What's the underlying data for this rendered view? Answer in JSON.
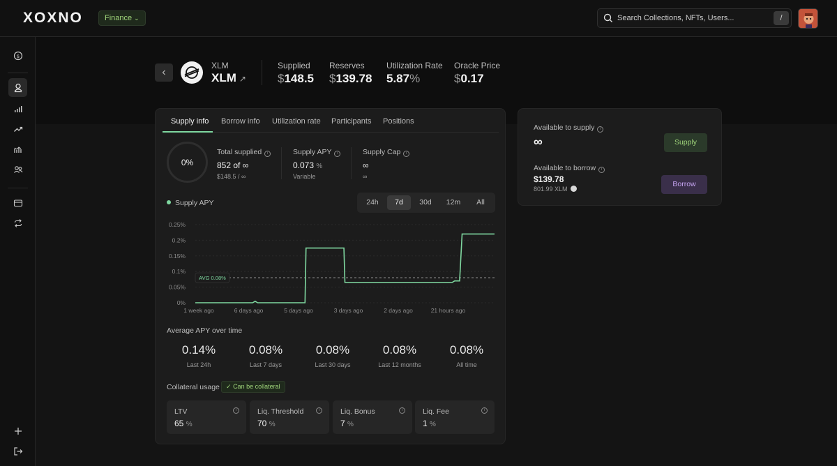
{
  "topbar": {
    "logo": "XOXNO",
    "section_pill": "Finance",
    "search_placeholder": "Search Collections, NFTs, Users...",
    "search_shortcut": "/"
  },
  "asset": {
    "symbol_small": "XLM",
    "symbol": "XLM",
    "stats": [
      {
        "label": "Supplied",
        "currency": "$",
        "value": "148.5",
        "unit": ""
      },
      {
        "label": "Reserves",
        "currency": "$",
        "value": "139.78",
        "unit": ""
      },
      {
        "label": "Utilization Rate",
        "currency": "",
        "value": "5.87",
        "unit": "%"
      },
      {
        "label": "Oracle Price",
        "currency": "$",
        "value": "0.17",
        "unit": ""
      }
    ]
  },
  "tabs": [
    "Supply info",
    "Borrow info",
    "Utilization rate",
    "Participants",
    "Positions"
  ],
  "supply": {
    "ring_value": "0%",
    "total_supplied_label": "Total supplied",
    "total_supplied_value": "852 of ∞",
    "total_supplied_sub": "$148.5 / ∞",
    "apy_label": "Supply APY",
    "apy_value": "0.073",
    "apy_unit": "%",
    "apy_sub": "Variable",
    "cap_label": "Supply Cap",
    "cap_value": "∞",
    "cap_sub": "∞"
  },
  "chart_controls": {
    "legend": "Supply APY",
    "ranges": [
      "24h",
      "7d",
      "30d",
      "12m",
      "All"
    ],
    "active_range": "7d"
  },
  "chart_data": {
    "type": "line",
    "series": [
      {
        "name": "Supply APY",
        "values": [
          [
            0,
            0
          ],
          [
            1.15,
            0
          ],
          [
            1.2,
            0.005
          ],
          [
            1.25,
            0
          ],
          [
            2.2,
            0
          ],
          [
            2.22,
            0.175
          ],
          [
            2.98,
            0.175
          ],
          [
            3.0,
            0.065
          ],
          [
            5.15,
            0.065
          ],
          [
            5.2,
            0.07
          ],
          [
            5.3,
            0.07
          ],
          [
            5.35,
            0.22
          ],
          [
            6.0,
            0.22
          ]
        ]
      }
    ],
    "x_tick_labels": [
      "1 week ago",
      "6 days ago",
      "5 days ago",
      "3 days ago",
      "2 days ago",
      "21 hours ago"
    ],
    "y_tick_labels": [
      "0%",
      "0.05%",
      "0.1%",
      "0.15%",
      "0.2%",
      "0.25%"
    ],
    "ylim": [
      0,
      0.25
    ],
    "average_line": {
      "value": 0.08,
      "label": "AVG 0.08%"
    },
    "grid": true,
    "color": "#7fd8a0"
  },
  "average_apy": {
    "title": "Average APY over time",
    "items": [
      {
        "value": "0.14%",
        "label": "Last 24h"
      },
      {
        "value": "0.08%",
        "label": "Last 7 days"
      },
      {
        "value": "0.08%",
        "label": "Last 30 days"
      },
      {
        "value": "0.08%",
        "label": "Last 12 months"
      },
      {
        "value": "0.08%",
        "label": "All time"
      }
    ]
  },
  "collateral": {
    "title": "Collateral usage",
    "badge": "Can be collateral",
    "metrics": [
      {
        "label": "LTV",
        "value": "65",
        "unit": "%"
      },
      {
        "label": "Liq. Threshold",
        "value": "70",
        "unit": "%"
      },
      {
        "label": "Liq. Bonus",
        "value": "7",
        "unit": "%"
      },
      {
        "label": "Liq. Fee",
        "value": "1",
        "unit": "%"
      }
    ]
  },
  "actions": {
    "available_supply_label": "Available to supply",
    "available_supply_value": "∞",
    "supply_button": "Supply",
    "available_borrow_label": "Available to borrow",
    "available_borrow_value": "$139.78",
    "available_borrow_sub": "801.99 XLM",
    "borrow_button": "Borrow"
  },
  "colors": {
    "accent": "#7fd8a0",
    "borrow": "#c4a3f0",
    "background": "#141414"
  }
}
